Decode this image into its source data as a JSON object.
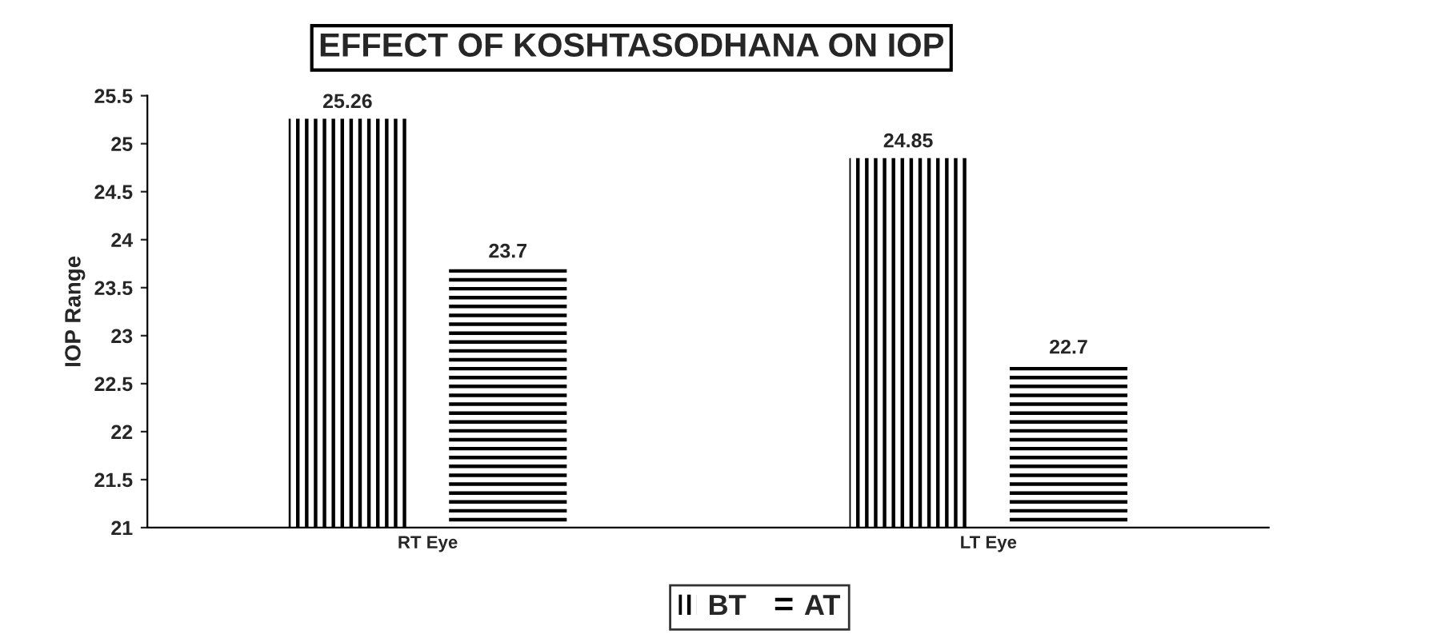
{
  "chart_data": {
    "type": "bar",
    "title": "EFFECT OF KOSHTASODHANA ON IOP",
    "ylabel": "IOP Range",
    "categories": [
      "RT Eye",
      "LT Eye"
    ],
    "series": [
      {
        "name": "BT",
        "color": "#000000",
        "values": [
          25.26,
          24.85
        ]
      },
      {
        "name": "AT",
        "color": "#000000",
        "values": [
          23.7,
          22.7
        ]
      }
    ],
    "ylim": [
      21,
      25.5
    ],
    "yticks": [
      21,
      21.5,
      22,
      22.5,
      23,
      23.5,
      24,
      24.5,
      25,
      25.5
    ],
    "data_labels": true,
    "grid": false,
    "legend": "bottom"
  }
}
